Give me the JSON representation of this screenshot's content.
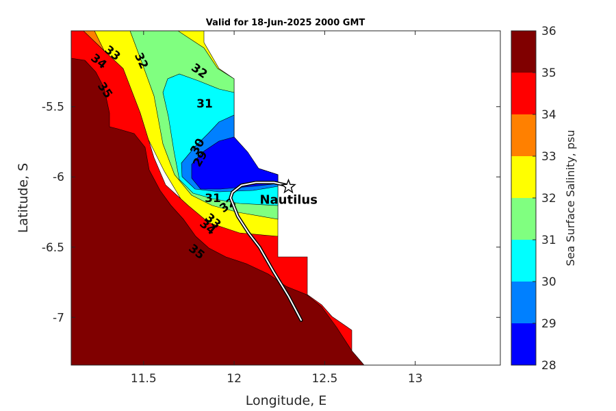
{
  "chart_data": {
    "type": "contour",
    "title": "Valid for 18-Jun-2025 2000 GMT",
    "xlabel": "Longitude, E",
    "ylabel": "Latitude, S",
    "xlim": [
      11.1,
      13.47
    ],
    "ylim": [
      -7.34,
      -4.96
    ],
    "x_ticks": [
      "11.5",
      "12",
      "12.5",
      "13"
    ],
    "x_tick_values": [
      11.5,
      12,
      12.5,
      13
    ],
    "y_ticks": [
      "-5.5",
      "-6",
      "-6.5",
      "-7"
    ],
    "y_tick_values": [
      -5.5,
      -6,
      -6.5,
      -7
    ],
    "colorbar": {
      "label": "Sea Surface Salinity, psu",
      "ticks": [
        "28",
        "29",
        "30",
        "31",
        "32",
        "33",
        "34",
        "35",
        "36"
      ],
      "levels": [
        28,
        29,
        30,
        31,
        32,
        33,
        34,
        35,
        36
      ],
      "colors": [
        "#0000ff",
        "#0080ff",
        "#00ffff",
        "#80ff80",
        "#ffff00",
        "#ff8000",
        "#ff0000",
        "#800000"
      ]
    },
    "contour_labels": [
      "33",
      "34",
      "35",
      "32",
      "32",
      "31",
      "30",
      "29",
      "31",
      "32",
      "33",
      "34",
      "35"
    ],
    "track": [
      {
        "lon": 12.37,
        "lat": -7.02
      },
      {
        "lon": 12.3,
        "lat": -6.85
      },
      {
        "lon": 12.22,
        "lat": -6.68
      },
      {
        "lon": 12.14,
        "lat": -6.5
      },
      {
        "lon": 12.08,
        "lat": -6.4
      },
      {
        "lon": 12.02,
        "lat": -6.28
      },
      {
        "lon": 11.98,
        "lat": -6.15
      },
      {
        "lon": 11.99,
        "lat": -6.11
      },
      {
        "lon": 12.04,
        "lat": -6.06
      },
      {
        "lon": 12.12,
        "lat": -6.04
      },
      {
        "lon": 12.22,
        "lat": -6.04
      },
      {
        "lon": 12.29,
        "lat": -6.06
      }
    ],
    "vessel": {
      "name": "Nautilus",
      "lon": 12.3,
      "lat": -6.07
    }
  }
}
